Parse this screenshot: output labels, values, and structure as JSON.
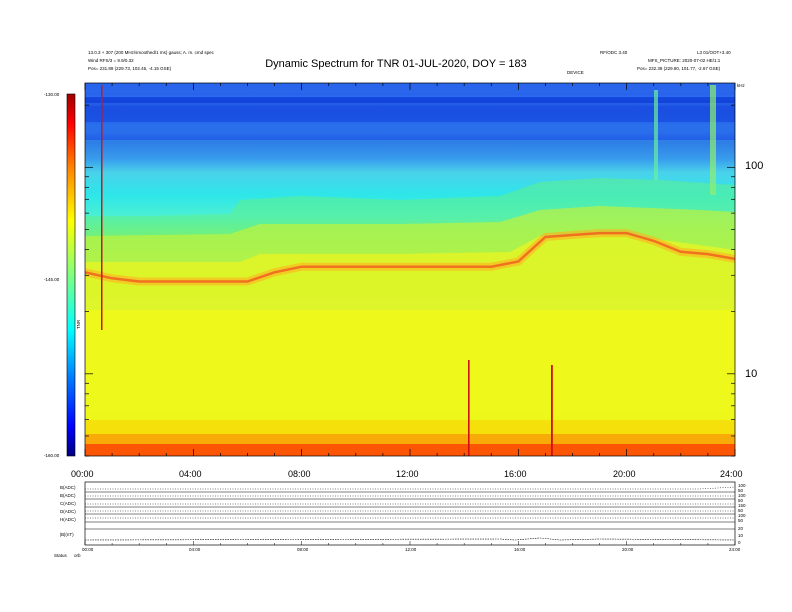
{
  "header": {
    "title": "Dynamic Spectrum for TNR 01-JUL-2020, DOY = 183",
    "left_line1": "13.0.3 + 307 (200 MHz/smoothed/1 ms) gauss; A. m. cmd spec",
    "left_line2": "Wind RFS/3 = 9.9/0.32",
    "left_line3": "Pos=   231.89 (229.73, 102.45, -4.15 GSE)",
    "right_line1": "RF/ODC 3.40",
    "right_line2": "L3 01/OOT+3.40",
    "right_line3": "MFS_PICTURE: 2020-07-02 HE/1:1",
    "right_line4": "Pos=   232.38 (229.80, 101.77, -2.67 GSE)",
    "center_small": "DEVICE",
    "right_corner": "kHz"
  },
  "colorbar": {
    "top_label": "-130.00",
    "mid_label": "-145.00",
    "bottom_label": "-160.00",
    "unit_label": "TNR",
    "colors": [
      "#000080",
      "#0000ff",
      "#0080ff",
      "#00ffff",
      "#80ff80",
      "#ffff00",
      "#ff8000",
      "#ff0000",
      "#800000"
    ]
  },
  "chart_data": {
    "type": "heatmap",
    "title": "Dynamic Spectrum for TNR 01-JUL-2020, DOY = 183",
    "x_ticks": [
      "00:00",
      "04:00",
      "08:00",
      "12:00",
      "16:00",
      "20:00",
      "24:00"
    ],
    "x_range_hours": [
      0,
      24
    ],
    "y_axis": {
      "scale": "log",
      "unit": "kHz",
      "range": [
        4,
        256
      ],
      "ticks": [
        10,
        100
      ],
      "tick_labels": [
        "10",
        "100"
      ]
    },
    "color_scale": {
      "min": -160,
      "max": -130,
      "ticks": [
        -130,
        -145,
        -160
      ],
      "tick_labels": [
        "-130.00",
        "-145.00",
        "-160.00"
      ]
    },
    "plasma_line_kHz": {
      "hours": [
        0,
        1,
        2,
        3,
        4,
        5,
        6,
        7,
        8,
        9,
        10,
        11,
        12,
        13,
        14,
        15,
        16,
        17,
        18,
        19,
        20,
        21,
        22,
        23,
        24
      ],
      "values": [
        31,
        29,
        28,
        28,
        28,
        28,
        28,
        31,
        33,
        33,
        33,
        33,
        33,
        33,
        33,
        33,
        35,
        46,
        47,
        48,
        48,
        44,
        39,
        38,
        36
      ]
    },
    "grid": false
  },
  "bottom_panel": {
    "row_labels": [
      "B(ADC)",
      "B(ADC)",
      "C(ADC)",
      "D(ADC)",
      "H(ADC)",
      "|B|(nT)"
    ],
    "right_ticks_a": [
      "100",
      "50"
    ],
    "right_ticks_b": [
      "100",
      "50"
    ],
    "right_ticks_c": [
      "150",
      "50"
    ],
    "right_ticks_d": [
      "100",
      "50"
    ],
    "right_ticks_e": [
      "20",
      "10",
      "0"
    ],
    "x_ticks": [
      "00:00",
      "04:00",
      "08:00",
      "12:00",
      "16:00",
      "20:00",
      "24:00"
    ],
    "status_label": "Status",
    "status_value": "orb"
  }
}
